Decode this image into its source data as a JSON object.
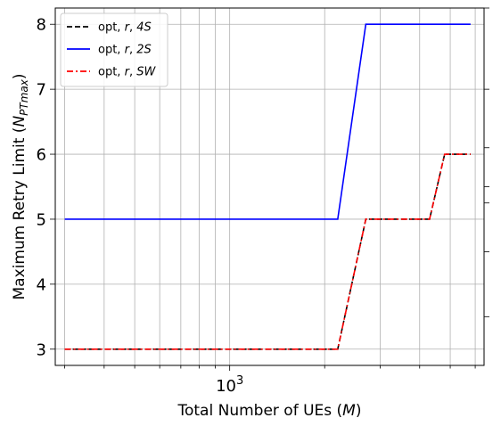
{
  "chart_data": {
    "type": "line",
    "xscale": "log",
    "xlim": [
      280,
      6400
    ],
    "ylim": [
      2.75,
      8.25
    ],
    "xlabel": "Total Number of UEs (M)",
    "ylabel": "Maximum Retry Limit (N_PTmax)",
    "x_major_ticks": [
      {
        "value": 1000,
        "label": "10³"
      }
    ],
    "y_ticks": [
      3,
      4,
      5,
      6,
      7,
      8
    ],
    "grid": true,
    "legend_placement": "top-left",
    "series": [
      {
        "name": "opt, r, 4S",
        "color": "#000000",
        "dash": "dashed",
        "x": [
          300,
          2200,
          2700,
          4300,
          4800,
          5800
        ],
        "y": [
          3,
          3,
          5,
          5,
          6,
          6
        ]
      },
      {
        "name": "opt, r, 2S",
        "color": "#0000ff",
        "dash": "solid",
        "x": [
          300,
          2200,
          2700,
          5800
        ],
        "y": [
          5,
          5,
          8,
          8
        ]
      },
      {
        "name": "opt, r, SW",
        "color": "#ff0000",
        "dash": "dashdot",
        "x": [
          300,
          2200,
          2700,
          4300,
          4800,
          5800
        ],
        "y": [
          3,
          3,
          5,
          5,
          6,
          6
        ]
      }
    ]
  }
}
